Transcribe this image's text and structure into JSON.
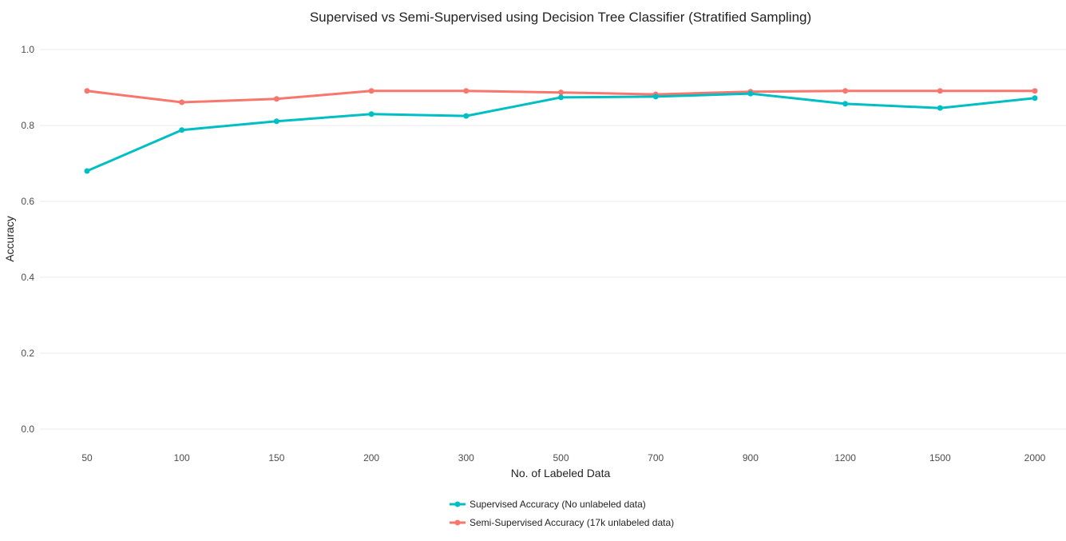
{
  "chart_data": {
    "type": "line",
    "title": "Supervised vs Semi-Supervised using Decision Tree Classifier (Stratified Sampling)",
    "xlabel": "No. of Labeled Data",
    "ylabel": "Accuracy",
    "categories": [
      "50",
      "100",
      "150",
      "200",
      "300",
      "500",
      "700",
      "900",
      "1200",
      "1500",
      "2000"
    ],
    "ylim": [
      0,
      1
    ],
    "yticks": [
      "0.0",
      "0.2",
      "0.4",
      "0.6",
      "0.8",
      "1.0"
    ],
    "ytick_values": [
      0,
      0.2,
      0.4,
      0.6,
      0.8,
      1.0
    ],
    "grid": true,
    "legend_position": "bottom",
    "series": [
      {
        "name": "Supervised Accuracy (No unlabeled data)",
        "color": "#00BFC4",
        "values": [
          0.68,
          0.788,
          0.811,
          0.83,
          0.825,
          0.874,
          0.876,
          0.884,
          0.857,
          0.846,
          0.872
        ]
      },
      {
        "name": "Semi-Supervised Accuracy (17k unlabeled data)",
        "color": "#F8766D",
        "values": [
          0.891,
          0.861,
          0.87,
          0.891,
          0.891,
          0.887,
          0.882,
          0.889,
          0.891,
          0.891,
          0.891
        ]
      }
    ]
  }
}
